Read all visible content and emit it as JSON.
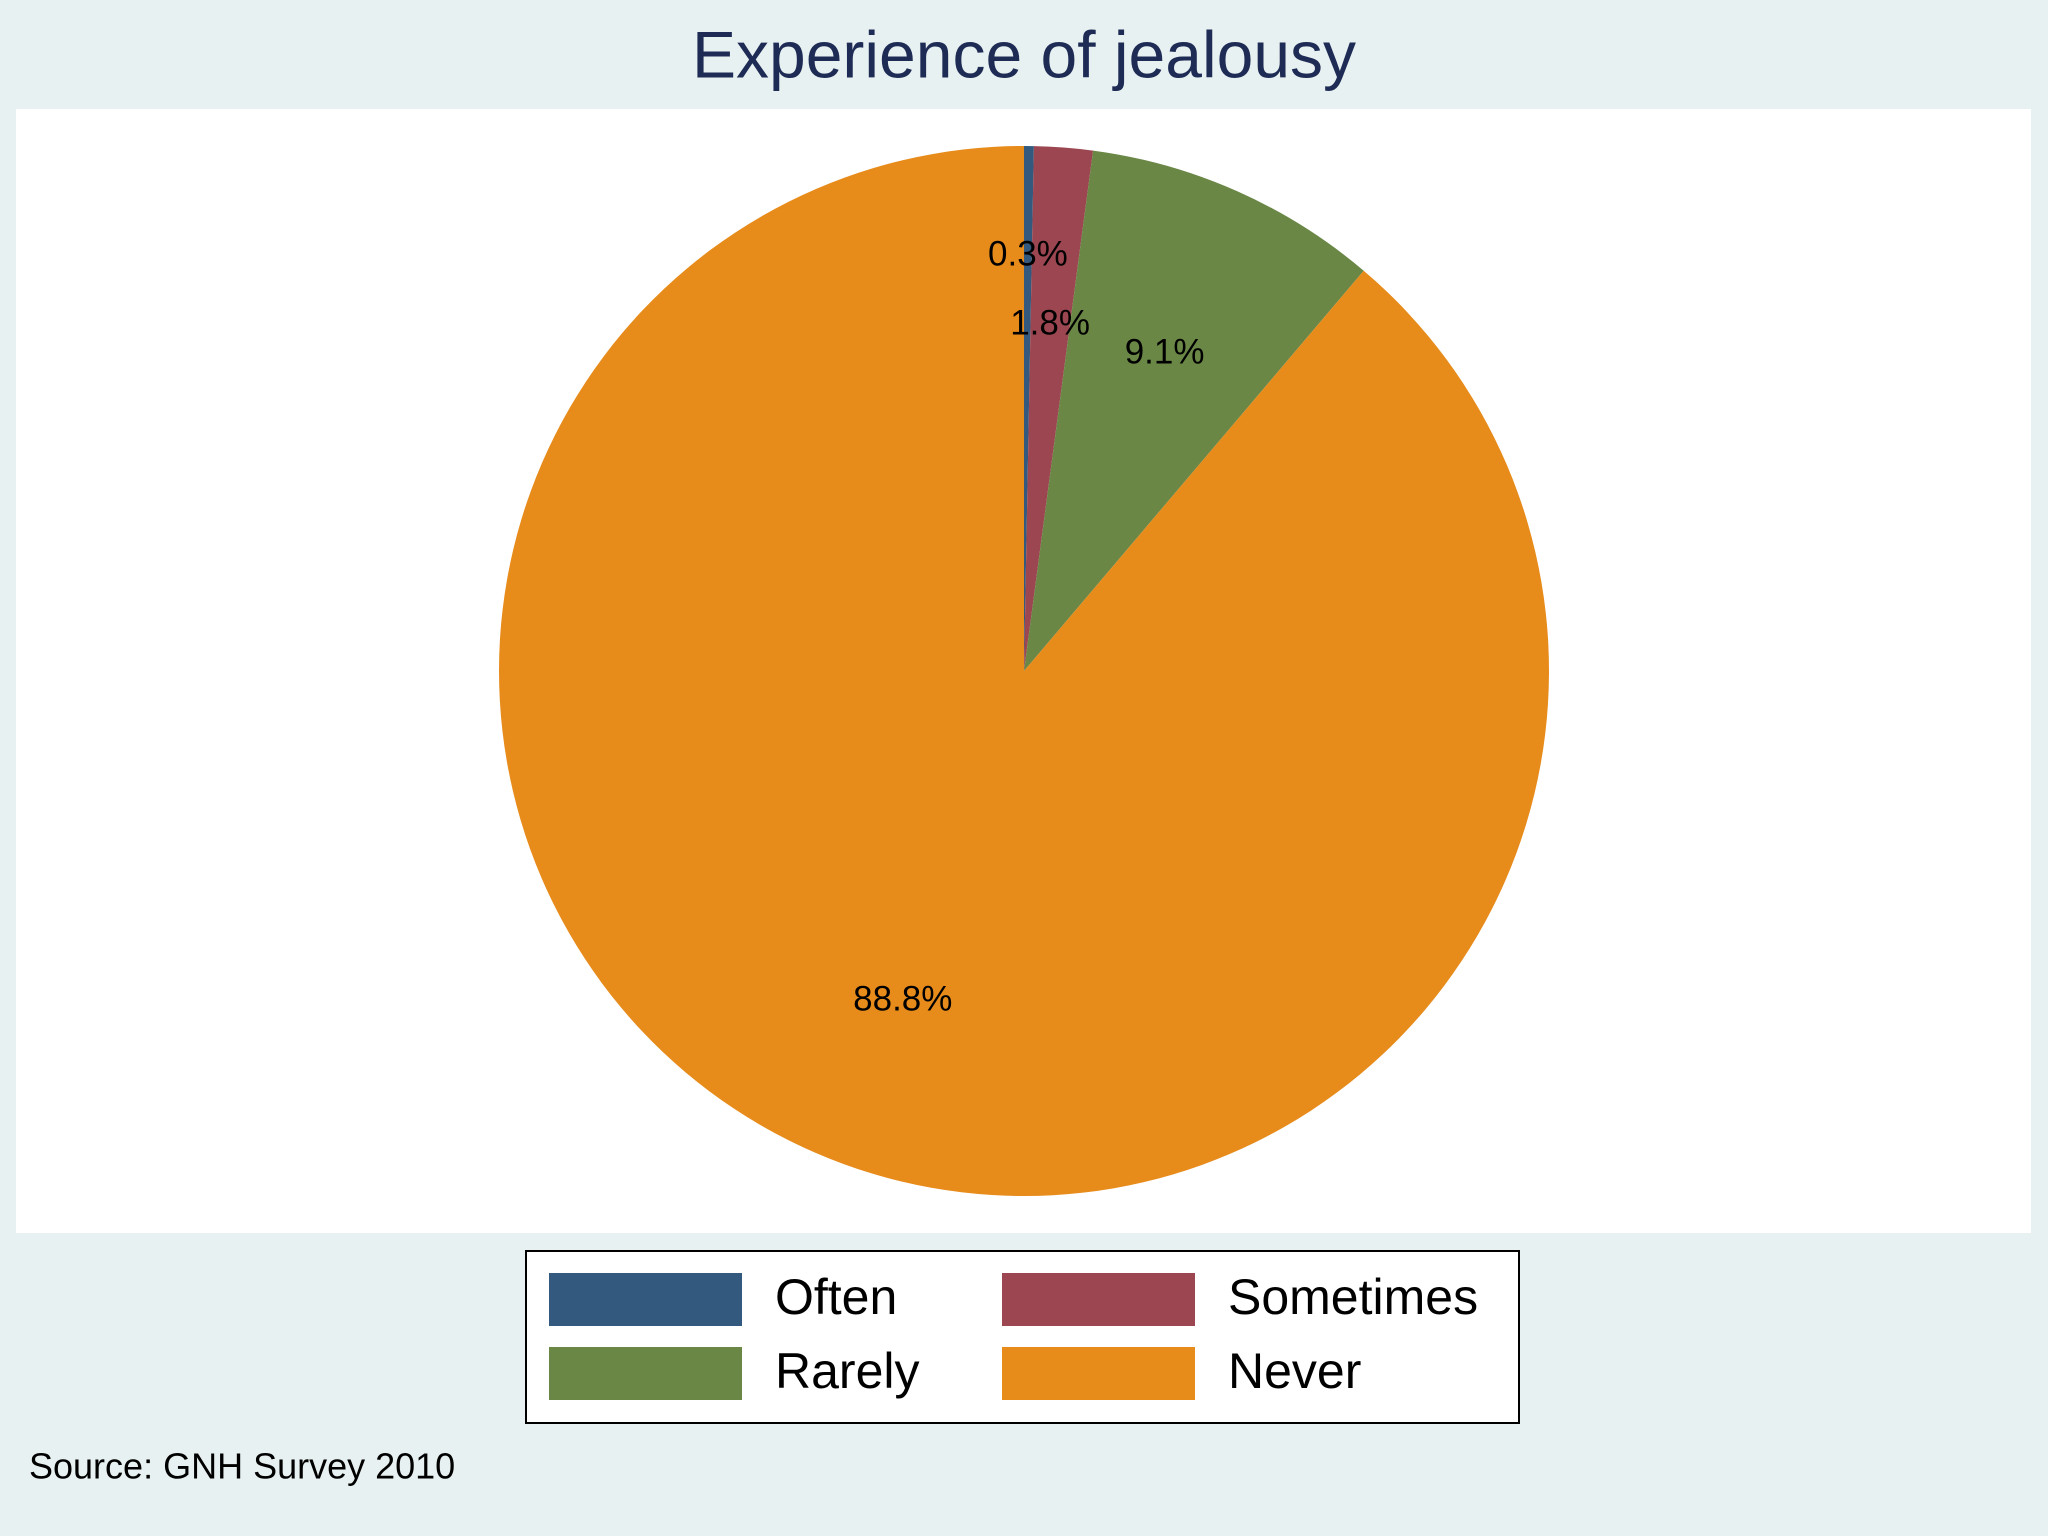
{
  "chart_data": {
    "type": "pie",
    "title": "Experience of jealousy",
    "categories": [
      "Often",
      "Sometimes",
      "Rarely",
      "Never"
    ],
    "values": [
      0.3,
      1.8,
      9.1,
      88.8
    ],
    "value_labels": [
      "0.3%",
      "1.8%",
      "9.1%",
      "88.8%"
    ],
    "colors": [
      "#335a7e",
      "#9b4650",
      "#6a8746",
      "#e78b1b"
    ],
    "legend": "bottom",
    "note": "Source: GNH Survey 2010"
  }
}
